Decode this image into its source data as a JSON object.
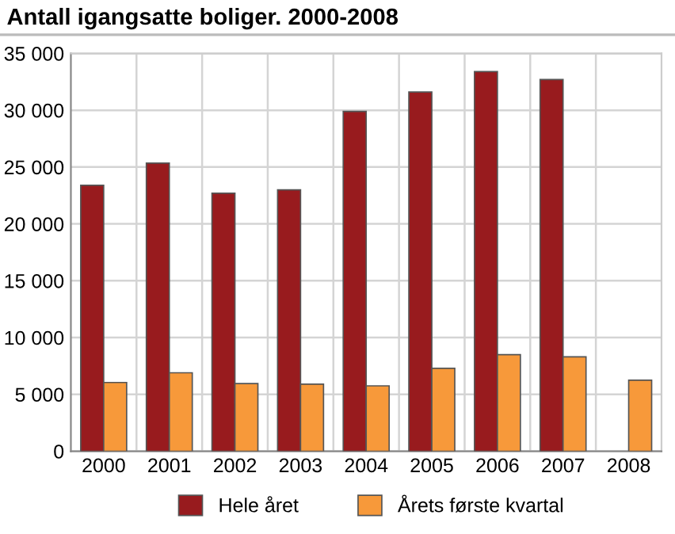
{
  "chart_data": {
    "type": "bar",
    "title": "Antall igangsatte boliger. 2000-2008",
    "categories": [
      "2000",
      "2001",
      "2002",
      "2003",
      "2004",
      "2005",
      "2006",
      "2007",
      "2008"
    ],
    "series": [
      {
        "name": "Hele året",
        "color": "#981b1e",
        "values": [
          23400,
          25350,
          22700,
          23000,
          29900,
          31600,
          33400,
          32700,
          null
        ]
      },
      {
        "name": "Årets første kvartal",
        "color": "#f7993a",
        "values": [
          6050,
          6900,
          5950,
          5900,
          5750,
          7300,
          8500,
          8300,
          6250
        ]
      }
    ],
    "ylim": [
      0,
      35000
    ],
    "yticks": [
      {
        "value": 0,
        "label": "0"
      },
      {
        "value": 5000,
        "label": "5 000"
      },
      {
        "value": 10000,
        "label": "10 000"
      },
      {
        "value": 15000,
        "label": "15 000"
      },
      {
        "value": 20000,
        "label": "20 000"
      },
      {
        "value": 25000,
        "label": "25 000"
      },
      {
        "value": 30000,
        "label": "30 000"
      },
      {
        "value": 35000,
        "label": "35 000"
      }
    ],
    "grid": true,
    "legend": "bottom"
  }
}
